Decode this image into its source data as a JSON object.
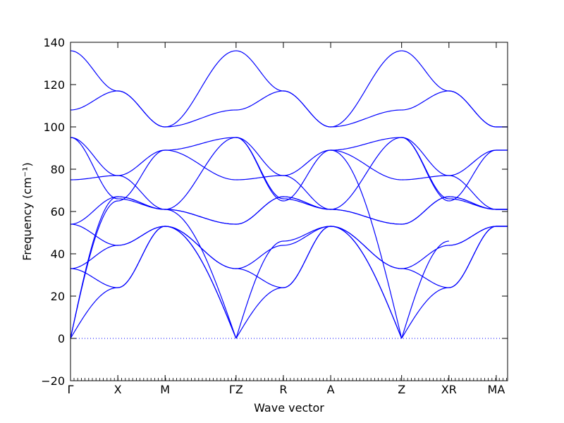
{
  "chart_data": {
    "type": "line",
    "xlabel": "Wave vector",
    "ylabel": "Frequency",
    "ylabel_unit": "(cm⁻¹)",
    "ylim": [
      -20,
      140
    ],
    "yticks": [
      -20,
      0,
      20,
      40,
      60,
      80,
      100,
      120,
      140
    ],
    "grid": false,
    "line_color": "#0000ff",
    "zero_line": {
      "y": 0,
      "style": "dotted",
      "color": "#0000ff"
    },
    "kpoints": [
      {
        "label": "Γ",
        "x": 0.0
      },
      {
        "label": "X",
        "x": 0.5
      },
      {
        "label": "M",
        "x": 1.0
      },
      {
        "label": "ΓZ",
        "x": 1.75
      },
      {
        "label": "R",
        "x": 2.25
      },
      {
        "label": "A",
        "x": 2.75
      },
      {
        "label": "Z",
        "x": 3.5
      },
      {
        "label": "XR",
        "x": 4.0
      },
      {
        "label": "MA",
        "x": 4.5
      }
    ],
    "xlim": [
      0,
      4.62
    ],
    "segments": [
      {
        "name": "Γ-X",
        "x_start": 0.0,
        "x_end": 0.5,
        "bands": [
          [
            0,
            67
          ],
          [
            0,
            65
          ],
          [
            0,
            24
          ],
          [
            33,
            44
          ],
          [
            33,
            24
          ],
          [
            54,
            67
          ],
          [
            54,
            44
          ],
          [
            75,
            77
          ],
          [
            95,
            77
          ],
          [
            95,
            66
          ],
          [
            108,
            117
          ],
          [
            136,
            117
          ]
        ]
      },
      {
        "name": "X-M",
        "x_start": 0.5,
        "x_end": 1.0,
        "bands": [
          [
            67,
            61
          ],
          [
            65,
            89
          ],
          [
            24,
            53
          ],
          [
            44,
            53
          ],
          [
            24,
            53
          ],
          [
            67,
            61
          ],
          [
            44,
            53
          ],
          [
            77,
            89
          ],
          [
            77,
            61
          ],
          [
            66,
            61
          ],
          [
            117,
            100
          ],
          [
            117,
            100
          ]
        ]
      },
      {
        "name": "M-Γ",
        "x_start": 1.0,
        "x_end": 1.75,
        "bands": [
          [
            61,
            54
          ],
          [
            89,
            95
          ],
          [
            53,
            0
          ],
          [
            53,
            0
          ],
          [
            53,
            33
          ],
          [
            61,
            54
          ],
          [
            53,
            33
          ],
          [
            89,
            75
          ],
          [
            61,
            0
          ],
          [
            61,
            95
          ],
          [
            100,
            108
          ],
          [
            100,
            136
          ]
        ]
      },
      {
        "name": "Z-R",
        "x_start": 1.75,
        "x_end": 2.25,
        "bands": [
          [
            54,
            67
          ],
          [
            95,
            65
          ],
          [
            0,
            24
          ],
          [
            0,
            46
          ],
          [
            33,
            44
          ],
          [
            54,
            67
          ],
          [
            33,
            24
          ],
          [
            75,
            77
          ],
          [
            95,
            77
          ],
          [
            95,
            66
          ],
          [
            108,
            117
          ],
          [
            136,
            117
          ]
        ]
      },
      {
        "name": "R-A",
        "x_start": 2.25,
        "x_end": 2.75,
        "bands": [
          [
            67,
            61
          ],
          [
            65,
            89
          ],
          [
            24,
            53
          ],
          [
            46,
            53
          ],
          [
            44,
            53
          ],
          [
            67,
            61
          ],
          [
            24,
            53
          ],
          [
            77,
            89
          ],
          [
            77,
            61
          ],
          [
            66,
            61
          ],
          [
            117,
            100
          ],
          [
            117,
            100
          ]
        ]
      },
      {
        "name": "A-Z",
        "x_start": 2.75,
        "x_end": 3.5,
        "bands": [
          [
            61,
            54
          ],
          [
            89,
            95
          ],
          [
            53,
            0
          ],
          [
            53,
            0
          ],
          [
            53,
            33
          ],
          [
            61,
            54
          ],
          [
            53,
            33
          ],
          [
            89,
            75
          ],
          [
            61,
            95
          ],
          [
            89,
            0
          ],
          [
            100,
            108
          ],
          [
            100,
            136
          ]
        ]
      },
      {
        "name": "Z-X",
        "x_start": 3.5,
        "x_end": 4.0,
        "bands": [
          [
            54,
            67
          ],
          [
            95,
            65
          ],
          [
            0,
            24
          ],
          [
            0,
            46
          ],
          [
            33,
            44
          ],
          [
            54,
            67
          ],
          [
            33,
            24
          ],
          [
            75,
            77
          ],
          [
            95,
            77
          ],
          [
            95,
            66
          ],
          [
            108,
            117
          ],
          [
            136,
            117
          ]
        ]
      },
      {
        "name": "R-M",
        "x_start": 4.0,
        "x_end": 4.5,
        "bands": [
          [
            67,
            61
          ],
          [
            65,
            89
          ],
          [
            24,
            53
          ],
          [
            44,
            53
          ],
          [
            24,
            53
          ],
          [
            67,
            61
          ],
          [
            44,
            53
          ],
          [
            77,
            89
          ],
          [
            77,
            61
          ],
          [
            66,
            61
          ],
          [
            117,
            100
          ],
          [
            117,
            100
          ]
        ]
      },
      {
        "name": "M-A",
        "x_start": 4.5,
        "x_end": 4.62,
        "bands": [
          [
            61,
            61
          ],
          [
            89,
            89
          ],
          [
            53,
            53
          ],
          [
            53,
            53
          ],
          [
            53,
            53
          ],
          [
            61,
            61
          ],
          [
            53,
            53
          ],
          [
            89,
            89
          ],
          [
            61,
            61
          ],
          [
            61,
            61
          ],
          [
            100,
            100
          ],
          [
            100,
            100
          ]
        ]
      }
    ]
  }
}
